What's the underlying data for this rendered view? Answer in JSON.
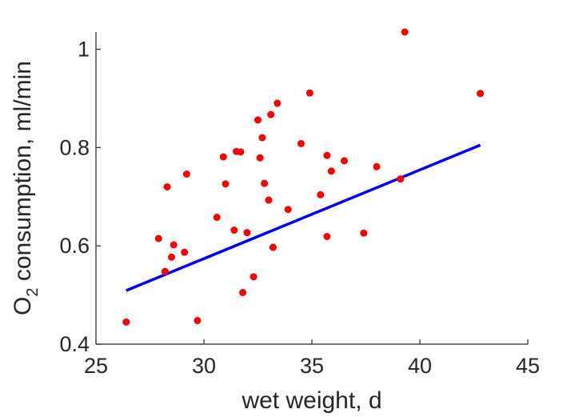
{
  "chart_data": {
    "type": "scatter",
    "title": "",
    "xlabel": "wet weight, d",
    "ylabel": {
      "prefix": "O",
      "subscript": "2",
      "suffix": " consumption, ml/min"
    },
    "xlim": [
      25,
      45
    ],
    "ylim": [
      0.4,
      1.035
    ],
    "xticks": [
      25,
      30,
      35,
      40,
      45
    ],
    "yticks": [
      0.4,
      0.6,
      0.8,
      1
    ],
    "grid": false,
    "colors": {
      "points": "#ff0000",
      "fit_line": "#0000ff",
      "axes": "#262626"
    },
    "series": [
      {
        "x": [
          26.4,
          27.9,
          28.2,
          28.3,
          28.5,
          28.6,
          29.1,
          29.2,
          29.7,
          30.6,
          30.9,
          31.0,
          31.4,
          31.5,
          31.7,
          31.8,
          32.0,
          32.3,
          32.5,
          32.6,
          32.7,
          32.8,
          33.0,
          33.1,
          33.2,
          33.4,
          33.9,
          34.5,
          34.9,
          35.4,
          35.7,
          35.7,
          35.9,
          36.5,
          37.4,
          38.0,
          39.1,
          39.3,
          42.8
        ],
        "y": [
          0.445,
          0.615,
          0.548,
          0.72,
          0.577,
          0.602,
          0.587,
          0.746,
          0.448,
          0.658,
          0.781,
          0.726,
          0.632,
          0.792,
          0.791,
          0.505,
          0.627,
          0.537,
          0.856,
          0.779,
          0.82,
          0.727,
          0.693,
          0.867,
          0.597,
          0.89,
          0.674,
          0.808,
          0.911,
          0.704,
          0.784,
          0.619,
          0.752,
          0.773,
          0.626,
          0.761,
          0.736,
          1.035,
          0.91
        ]
      }
    ],
    "fit_line": {
      "x": [
        26.4,
        42.8
      ],
      "y": [
        0.509,
        0.805
      ]
    }
  }
}
